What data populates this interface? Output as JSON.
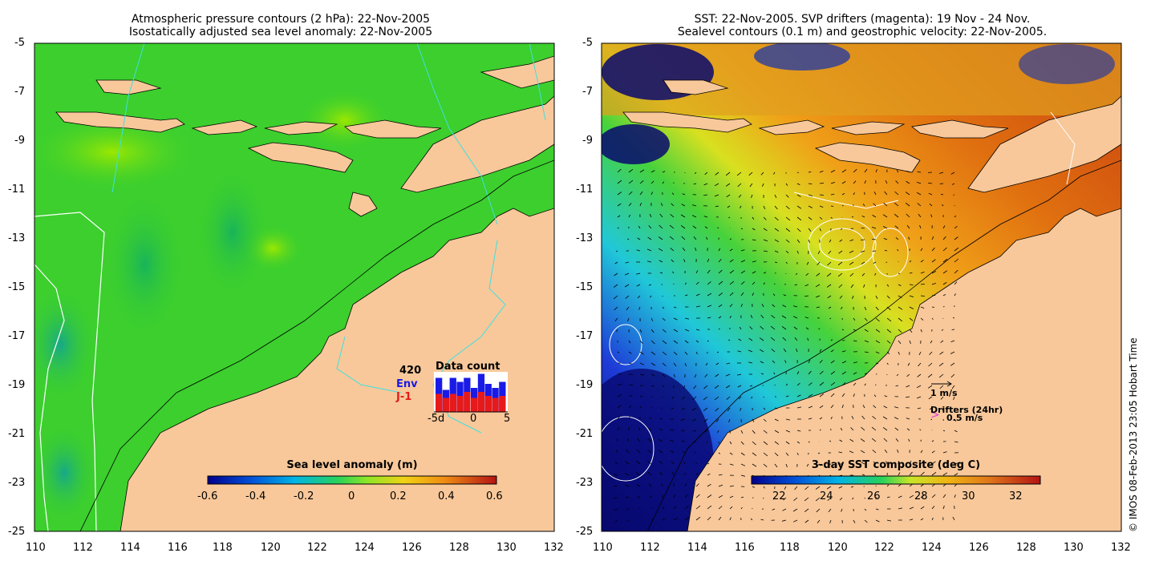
{
  "left_panel": {
    "title_line1": "Atmospheric pressure contours (2 hPa): 22-Nov-2005",
    "title_line2": "Isostatically adjusted sea level anomaly: 22-Nov-2005",
    "x_ticks": [
      "110",
      "112",
      "114",
      "116",
      "118",
      "120",
      "122",
      "124",
      "126",
      "128",
      "130",
      "132"
    ],
    "y_ticks": [
      "-5",
      "-7",
      "-9",
      "-11",
      "-13",
      "-15",
      "-17",
      "-19",
      "-21",
      "-23",
      "-25"
    ],
    "colorbar": {
      "title": "Sea level anomaly (m)",
      "ticks": [
        "-0.6",
        "-0.4",
        "-0.2",
        "0",
        "0.2",
        "0.4",
        "0.6"
      ]
    },
    "data_count": {
      "title": "Data count",
      "max_label": "420",
      "env_label": "Env",
      "j1_label": "J-1",
      "x_ticks": [
        "-5d",
        "0",
        "5"
      ],
      "env_values": [
        0.85,
        0.55,
        0.85,
        0.75,
        0.85,
        0.6,
        0.95,
        0.7,
        0.6,
        0.75
      ],
      "j1_values": [
        0.45,
        0.35,
        0.45,
        0.4,
        0.5,
        0.35,
        0.5,
        0.4,
        0.35,
        0.4
      ]
    }
  },
  "right_panel": {
    "title_line1": "SST: 22-Nov-2005. SVP drifters (magenta): 19 Nov - 24 Nov.",
    "title_line2": "Sealevel contours (0.1 m) and geostrophic velocity: 22-Nov-2005.",
    "x_ticks": [
      "110",
      "112",
      "114",
      "116",
      "118",
      "120",
      "122",
      "124",
      "126",
      "128",
      "130",
      "132"
    ],
    "y_ticks": [
      "-5",
      "-7",
      "-9",
      "-11",
      "-13",
      "-15",
      "-17",
      "-19",
      "-21",
      "-23",
      "-25"
    ],
    "colorbar": {
      "title": "3-day SST composite (deg C)",
      "ticks": [
        "22",
        "24",
        "26",
        "28",
        "30",
        "32"
      ]
    },
    "velocity_legend": "1 m/s",
    "drifters_legend": "Drifters (24hr)",
    "drifters_speed": "0.5 m/s"
  },
  "credit": "© IMOS 08-Feb-2013 23:05 Hobart Time",
  "colors": {
    "land": "#f8c89a",
    "ocean_green": "#3ccf2e",
    "env_bar": "#1a1ae6",
    "j1_bar": "#e61a1a",
    "drifter": "#e040e0"
  }
}
